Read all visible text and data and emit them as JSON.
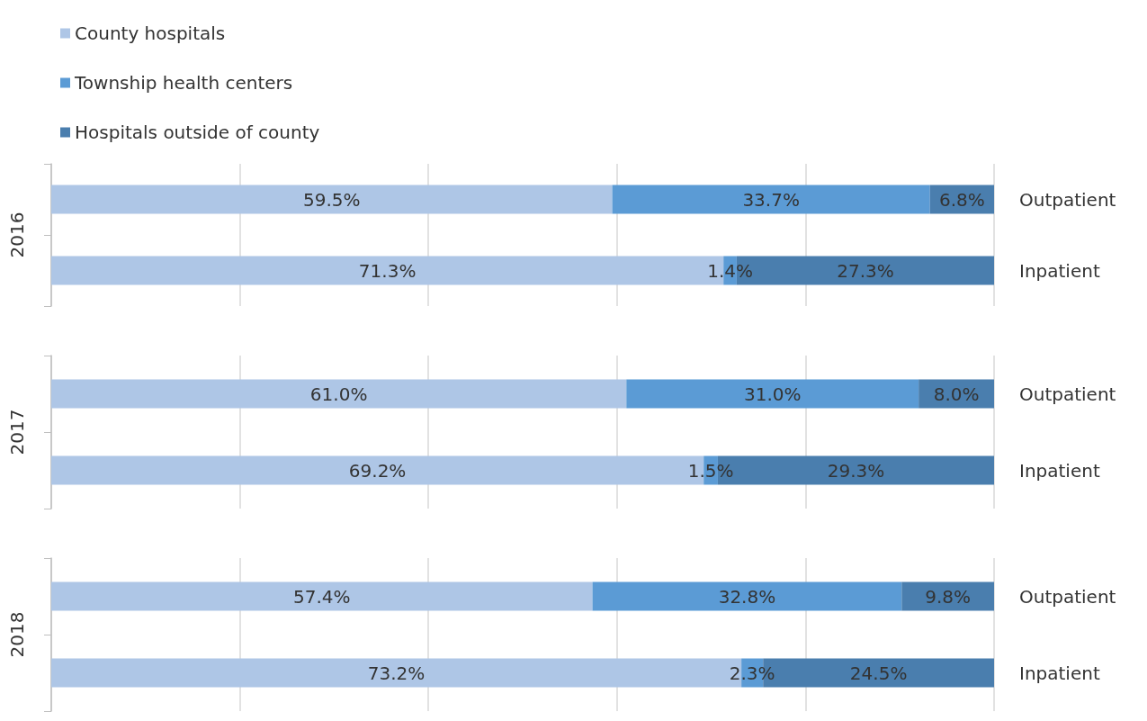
{
  "chart_data": [
    {
      "type": "bar",
      "stacked": true,
      "orientation": "horizontal",
      "ylabel": "2016",
      "categories": [
        "Outpatient",
        "Inpatient"
      ],
      "legend": "top left",
      "grid": "x",
      "tick_labels": "y",
      "xlim": [
        0,
        100
      ],
      "xticks": [
        {
          "value": 0,
          "label": null
        },
        {
          "value": 20,
          "label": null
        },
        {
          "value": 40,
          "label": null
        },
        {
          "value": 60,
          "label": null
        },
        {
          "value": 80,
          "label": null
        },
        {
          "value": 100,
          "label": null
        }
      ],
      "series": [
        {
          "name": "County hospitals",
          "color": "#aec6e6",
          "values": [
            59.5,
            71.3
          ],
          "value_labels": [
            "59.5%",
            "71.3%"
          ]
        },
        {
          "name": "Township health centers",
          "color": "#5b9bd5",
          "values": [
            33.7,
            1.4
          ],
          "value_labels": [
            "33.7%",
            "1.4%"
          ]
        },
        {
          "name": "Hospitals outside of county",
          "color": "#4a7eae",
          "values": [
            6.8,
            27.3
          ],
          "value_labels": [
            "6.8%",
            "27.3%"
          ]
        }
      ]
    },
    {
      "type": "bar",
      "stacked": true,
      "orientation": "horizontal",
      "ylabel": "2017",
      "categories": [
        "Outpatient",
        "Inpatient"
      ],
      "grid": "x",
      "tick_labels": "y",
      "xlim": [
        0,
        100
      ],
      "xticks": [
        {
          "value": 0,
          "label": null
        },
        {
          "value": 20,
          "label": null
        },
        {
          "value": 40,
          "label": null
        },
        {
          "value": 60,
          "label": null
        },
        {
          "value": 80,
          "label": null
        },
        {
          "value": 100,
          "label": null
        }
      ],
      "series": [
        {
          "color": "#aec6e6",
          "values": [
            61.0,
            69.2
          ],
          "value_labels": [
            "61.0%",
            "69.2%"
          ]
        },
        {
          "color": "#5b9bd5",
          "values": [
            31.0,
            1.5
          ],
          "value_labels": [
            "31.0%",
            "1.5%"
          ]
        },
        {
          "color": "#4a7eae",
          "values": [
            8.0,
            29.3
          ],
          "value_labels": [
            "8.0%",
            "29.3%"
          ]
        }
      ]
    },
    {
      "type": "bar",
      "stacked": true,
      "orientation": "horizontal",
      "ylabel": "2018",
      "categories": [
        "Outpatient",
        "Inpatient"
      ],
      "grid": "x",
      "tick_labels": "y",
      "xlim": [
        0,
        100
      ],
      "xticks": [
        {
          "value": 0,
          "label": null
        },
        {
          "value": 20,
          "label": null
        },
        {
          "value": 40,
          "label": null
        },
        {
          "value": 60,
          "label": null
        },
        {
          "value": 80,
          "label": null
        },
        {
          "value": 100,
          "label": null
        }
      ],
      "series": [
        {
          "color": "#aec6e6",
          "values": [
            57.4,
            73.2
          ],
          "value_labels": [
            "57.4%",
            "73.2%"
          ]
        },
        {
          "color": "#5b9bd5",
          "values": [
            32.8,
            2.3
          ],
          "value_labels": [
            "32.8%",
            "2.3%"
          ]
        },
        {
          "color": "#4a7eae",
          "values": [
            9.8,
            24.5
          ],
          "value_labels": [
            "9.8%",
            "24.5%"
          ]
        }
      ]
    }
  ]
}
